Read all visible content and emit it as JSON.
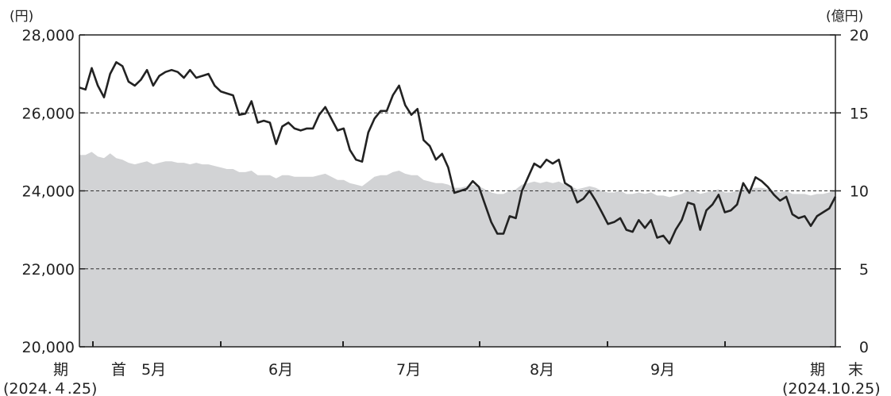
{
  "chart_data": {
    "type": "line",
    "title": "",
    "left_unit": "(円)",
    "right_unit": "(億円)",
    "left_axis": {
      "min": 20000,
      "max": 28000,
      "ticks": [
        "20,000",
        "22,000",
        "24,000",
        "26,000",
        "28,000"
      ],
      "tick_values": [
        20000,
        22000,
        24000,
        26000,
        28000
      ]
    },
    "right_axis": {
      "min": 0,
      "max": 20,
      "ticks": [
        "0",
        "5",
        "10",
        "15",
        "20"
      ],
      "tick_values": [
        0,
        5,
        10,
        15,
        20
      ]
    },
    "grid": "dashed horizontal at 22,000 / 24,000 / 26,000",
    "x_labels": {
      "start_chars": [
        "期",
        "首"
      ],
      "start_date": "(2024.４.25)",
      "end_chars": [
        "期",
        "末"
      ],
      "end_date": "(2024.10.25)",
      "months": [
        "5月",
        "6月",
        "7月",
        "8月",
        "9月"
      ]
    },
    "series": [
      {
        "kind": "line",
        "axis": "left",
        "values": [
          26650,
          26600,
          27150,
          26700,
          26400,
          27000,
          27300,
          27200,
          26800,
          26700,
          26850,
          27100,
          26700,
          26950,
          27050,
          27100,
          27050,
          26900,
          27100,
          26900,
          26950,
          27000,
          26700,
          26550,
          26500,
          26450,
          25950,
          25980,
          26300,
          25750,
          25800,
          25750,
          25200,
          25650,
          25750,
          25600,
          25550,
          25600,
          25600,
          25950,
          26150,
          25850,
          25550,
          25600,
          25050,
          24800,
          24750,
          25500,
          25850,
          26050,
          26050,
          26450,
          26700,
          26200,
          25950,
          26100,
          25300,
          25150,
          24800,
          24950,
          24600,
          23950,
          24000,
          24050,
          24250,
          24100,
          23650,
          23200,
          22900,
          22900,
          23350,
          23300,
          24000,
          24350,
          24700,
          24600,
          24800,
          24700,
          24800,
          24200,
          24100,
          23700,
          23800,
          24000,
          23750,
          23450,
          23150,
          23200,
          23300,
          23000,
          22950,
          23250,
          23050,
          23250,
          22800,
          22850,
          22650,
          23000,
          23250,
          23700,
          23650,
          23000,
          23500,
          23650,
          23900,
          23450,
          23500,
          23650,
          24200,
          23950,
          24350,
          24250,
          24100,
          23900,
          23750,
          23850,
          23400,
          23300,
          23350,
          23100,
          23350,
          23450,
          23550,
          23850
        ]
      },
      {
        "kind": "area",
        "axis": "right",
        "values": [
          12.3,
          12.3,
          12.5,
          12.2,
          12.1,
          12.4,
          12.1,
          12.0,
          11.8,
          11.7,
          11.8,
          11.9,
          11.7,
          11.8,
          11.9,
          11.9,
          11.8,
          11.8,
          11.7,
          11.8,
          11.7,
          11.7,
          11.6,
          11.5,
          11.4,
          11.4,
          11.2,
          11.2,
          11.3,
          11.0,
          11.0,
          11.0,
          10.8,
          11.0,
          11.0,
          10.9,
          10.9,
          10.9,
          10.9,
          11.0,
          11.1,
          10.9,
          10.7,
          10.7,
          10.5,
          10.4,
          10.3,
          10.6,
          10.9,
          11.0,
          11.0,
          11.2,
          11.3,
          11.1,
          11.0,
          11.0,
          10.7,
          10.6,
          10.5,
          10.5,
          10.4,
          10.2,
          10.2,
          10.3,
          10.4,
          10.3,
          10.1,
          9.9,
          9.8,
          9.8,
          10.0,
          10.1,
          10.4,
          10.5,
          10.6,
          10.5,
          10.6,
          10.5,
          10.6,
          10.4,
          10.3,
          10.1,
          10.2,
          10.3,
          10.2,
          10.0,
          9.9,
          9.9,
          10.0,
          9.8,
          9.8,
          9.9,
          9.8,
          9.9,
          9.7,
          9.7,
          9.6,
          9.7,
          9.8,
          10.0,
          10.0,
          9.8,
          9.9,
          10.0,
          10.1,
          9.9,
          9.9,
          10.0,
          10.2,
          10.1,
          10.2,
          10.2,
          10.1,
          10.0,
          9.9,
          10.0,
          9.8,
          9.8,
          9.8,
          9.7,
          9.8,
          9.8,
          9.9,
          10.0
        ]
      }
    ]
  }
}
